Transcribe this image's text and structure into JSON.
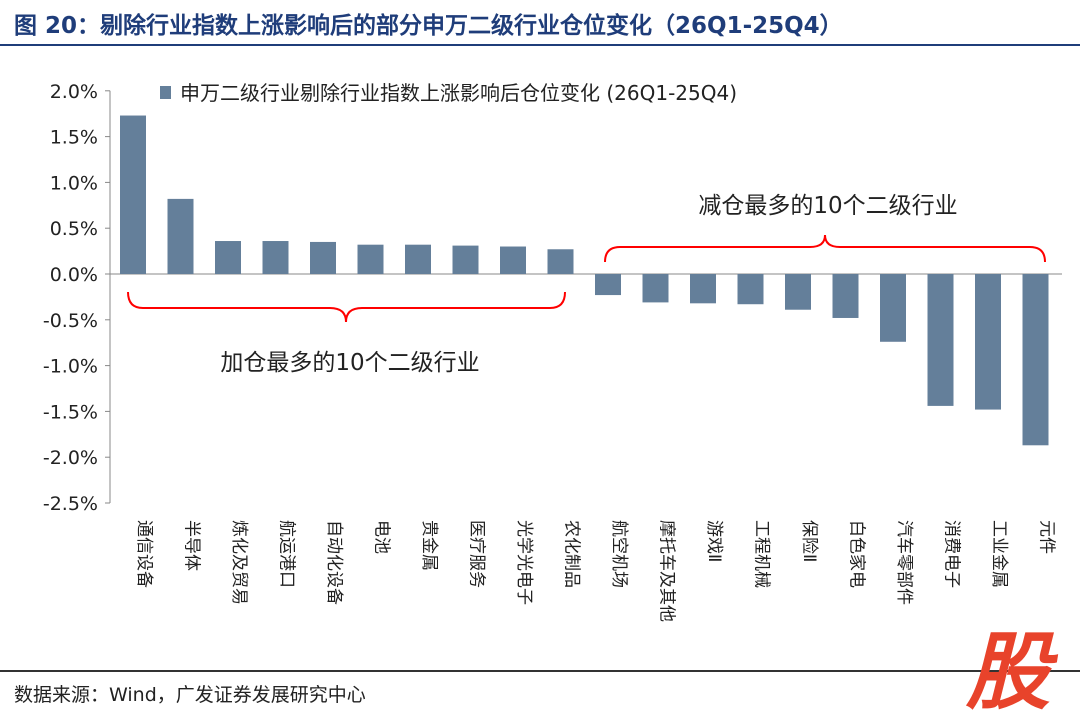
{
  "title": "图 20：剔除行业指数上涨影响后的部分申万二级行业仓位变化（26Q1-25Q4）",
  "source": "数据来源：Wind，广发证券发展研究中心",
  "watermark": "股",
  "chart_data": {
    "type": "bar",
    "categories": [
      "通信设备",
      "半导体",
      "炼化及贸易",
      "航运港口",
      "自动化设备",
      "电池",
      "贵金属",
      "医疗服务",
      "光学光电子",
      "农化制品",
      "航空机场",
      "摩托车及其他",
      "游戏Ⅱ",
      "工程机械",
      "保险Ⅱ",
      "白色家电",
      "汽车零部件",
      "消费电子",
      "工业金属",
      "元件"
    ],
    "series": [
      {
        "name": "申万二级行业剔除行业指数上涨影响后仓位变化 (26Q1-25Q4)",
        "values": [
          1.73,
          0.82,
          0.36,
          0.36,
          0.35,
          0.32,
          0.32,
          0.31,
          0.3,
          0.27,
          -0.23,
          -0.31,
          -0.32,
          -0.33,
          -0.39,
          -0.48,
          -0.74,
          -1.44,
          -1.48,
          -1.87
        ]
      }
    ],
    "ylim": [
      -2.5,
      2.0
    ],
    "yticks": [
      "2.0%",
      "1.5%",
      "1.0%",
      "0.5%",
      "0.0%",
      "-0.5%",
      "-1.0%",
      "-1.5%",
      "-2.0%",
      "-2.5%"
    ],
    "bar_color": "#647f9a",
    "legend": "top",
    "annotations": [
      "减仓最多的10个二级行业",
      "加仓最多的10个二级行业"
    ],
    "annotation_color": "#ff0000"
  }
}
